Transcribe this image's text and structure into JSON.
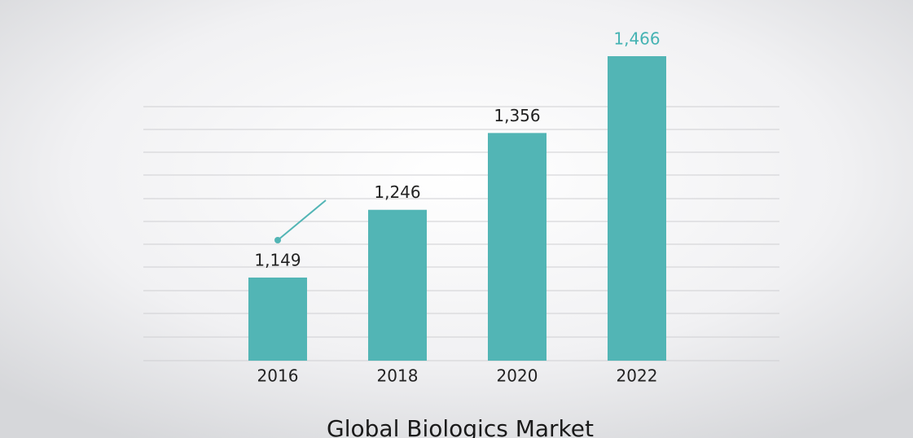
{
  "chart_data": {
    "type": "bar",
    "title": "Global Biologics Market",
    "categories": [
      "2016",
      "2018",
      "2020",
      "2022"
    ],
    "values": [
      1149,
      1246,
      1356,
      1466
    ],
    "value_labels": [
      "1,149",
      "1,246",
      "1,356",
      "1,466"
    ],
    "value_label_colors": [
      "#222222",
      "#222222",
      "#222222",
      "#45b3b3"
    ],
    "color": "#52b5b5",
    "ylim": [
      1030,
      1480
    ]
  }
}
